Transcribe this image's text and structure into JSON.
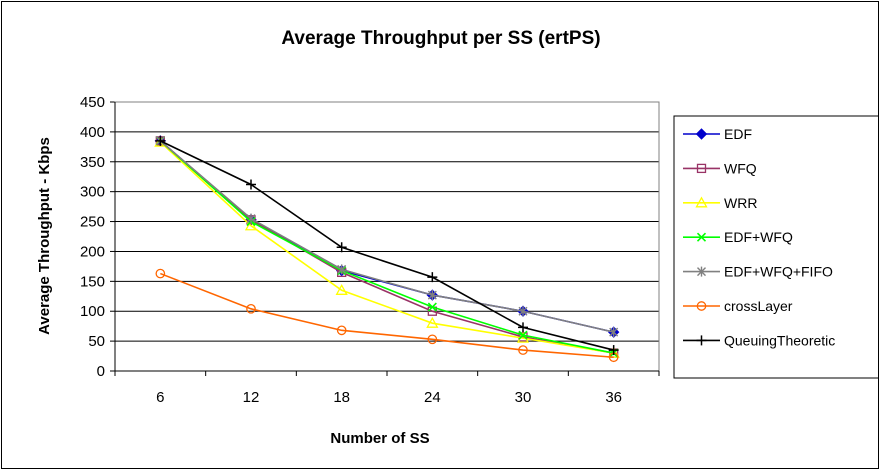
{
  "chart_data": {
    "type": "line",
    "title": "Average Throughput per SS (ertPS)",
    "xlabel": "Number of SS",
    "ylabel": "Average Throughput - Kbps",
    "categories": [
      "6",
      "12",
      "18",
      "24",
      "30",
      "36"
    ],
    "ylim": [
      0,
      450
    ],
    "yticks": [
      0,
      50,
      100,
      150,
      200,
      250,
      300,
      350,
      400,
      450
    ],
    "grid": true,
    "legend_position": "right",
    "series": [
      {
        "name": "EDF",
        "color": "#0000cc",
        "marker": "diamond",
        "values": [
          385,
          253,
          168,
          127,
          100,
          65
        ]
      },
      {
        "name": "WFQ",
        "color": "#993366",
        "marker": "square",
        "values": [
          385,
          253,
          165,
          100,
          57,
          30
        ]
      },
      {
        "name": "WRR",
        "color": "#ffff00",
        "marker": "triangle",
        "values": [
          383,
          243,
          135,
          80,
          55,
          30
        ]
      },
      {
        "name": "EDF+WFQ",
        "color": "#00ff00",
        "marker": "x",
        "values": [
          385,
          250,
          168,
          107,
          60,
          30
        ]
      },
      {
        "name": "EDF+WFQ+FIFO",
        "color": "#808080",
        "marker": "star",
        "values": [
          385,
          255,
          170,
          127,
          100,
          65
        ]
      },
      {
        "name": "crossLayer",
        "color": "#ff6600",
        "marker": "circle",
        "values": [
          163,
          104,
          68,
          53,
          35,
          23
        ]
      },
      {
        "name": "QueuingTheoretic",
        "color": "#000000",
        "marker": "plus",
        "values": [
          385,
          312,
          207,
          157,
          73,
          35
        ]
      }
    ]
  }
}
